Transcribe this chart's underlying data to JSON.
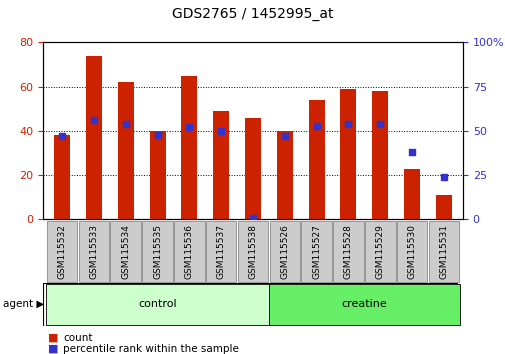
{
  "title": "GDS2765 / 1452995_at",
  "categories": [
    "GSM115532",
    "GSM115533",
    "GSM115534",
    "GSM115535",
    "GSM115536",
    "GSM115537",
    "GSM115538",
    "GSM115526",
    "GSM115527",
    "GSM115528",
    "GSM115529",
    "GSM115530",
    "GSM115531"
  ],
  "counts": [
    38,
    74,
    62,
    40,
    65,
    49,
    46,
    40,
    54,
    59,
    58,
    23,
    11
  ],
  "percentiles": [
    47,
    56,
    54,
    48,
    52,
    50,
    1,
    47,
    53,
    54,
    54,
    38,
    24
  ],
  "count_color": "#cc2200",
  "percentile_color": "#3333cc",
  "bar_width": 0.5,
  "ylim_left": [
    0,
    80
  ],
  "ylim_right": [
    0,
    100
  ],
  "yticks_left": [
    0,
    20,
    40,
    60,
    80
  ],
  "yticks_right": [
    0,
    25,
    50,
    75,
    100
  ],
  "groups": [
    {
      "label": "control",
      "indices": [
        0,
        1,
        2,
        3,
        4,
        5,
        6
      ],
      "color": "#ccffcc"
    },
    {
      "label": "creatine",
      "indices": [
        7,
        8,
        9,
        10,
        11,
        12
      ],
      "color": "#66ee66"
    }
  ],
  "legend_items": [
    {
      "label": "count",
      "color": "#cc2200"
    },
    {
      "label": "percentile rank within the sample",
      "color": "#3333cc"
    }
  ],
  "tick_label_color": "#cccccc"
}
